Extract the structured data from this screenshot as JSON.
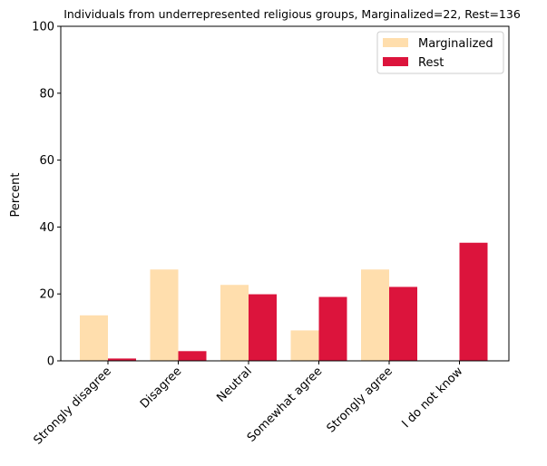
{
  "chart_data": {
    "type": "bar",
    "title": "Individuals from underrepresented religious groups, Marginalized=22, Rest=136",
    "xlabel": "",
    "ylabel": "Percent",
    "ylim": [
      0,
      100
    ],
    "yticks": [
      "0",
      "20",
      "40",
      "60",
      "80",
      "100"
    ],
    "categories": [
      "Strongly disagree",
      "Disagree",
      "Neutral",
      "Somewhat agree",
      "Strongly agree",
      "I do not know"
    ],
    "series": [
      {
        "name": "Marginalized",
        "color": "#ffdead",
        "values": [
          13.6,
          27.3,
          22.7,
          9.1,
          27.3,
          0
        ]
      },
      {
        "name": "Rest",
        "color": "#dc143c",
        "values": [
          0.7,
          2.9,
          19.9,
          19.1,
          22.1,
          35.3
        ]
      }
    ],
    "legend_position": "top-right",
    "grid": false
  }
}
